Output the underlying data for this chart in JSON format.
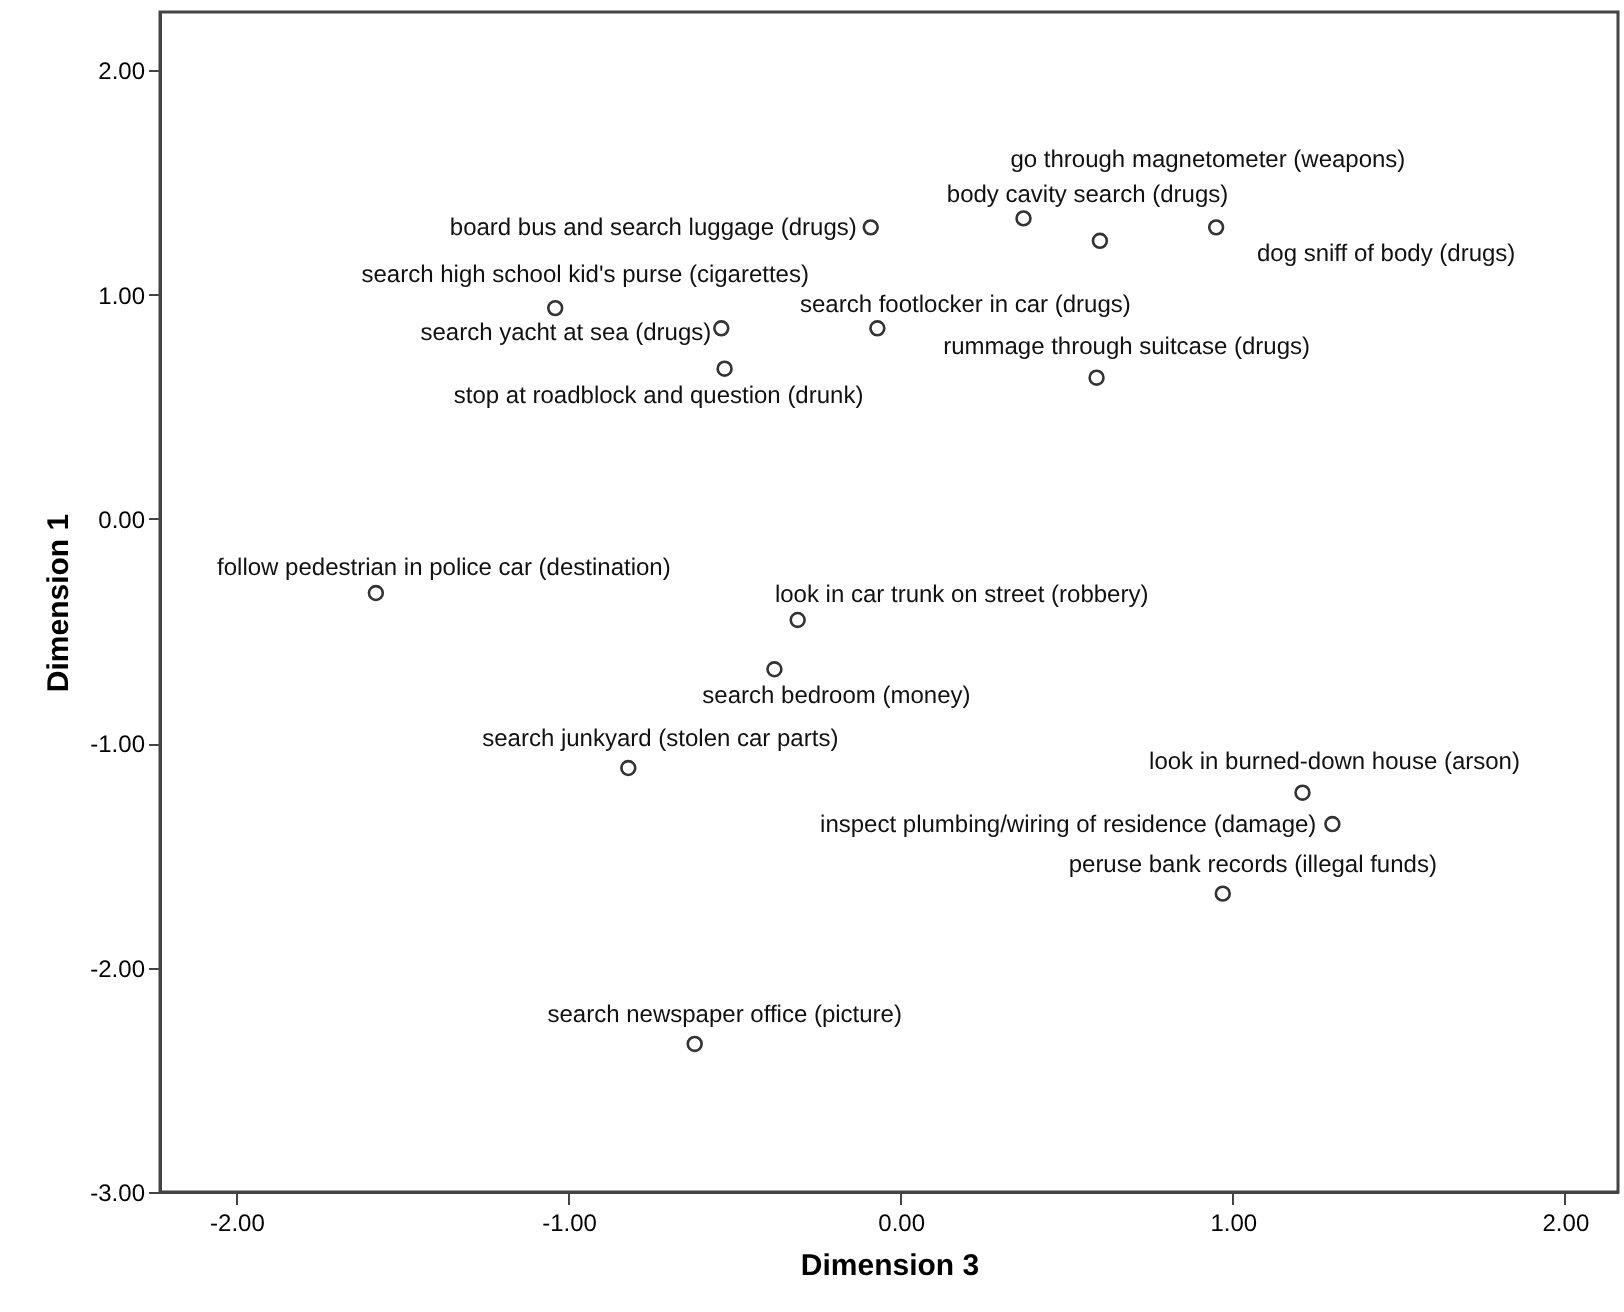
{
  "chart_data": {
    "type": "scatter",
    "xlabel": "Dimension 3",
    "ylabel": "Dimension 1",
    "x": [
      -0.09,
      0.37,
      0.6,
      0.95,
      -1.04,
      -0.54,
      -0.53,
      -0.07,
      0.59,
      -1.58,
      -0.31,
      -0.38,
      -0.82,
      1.21,
      1.3,
      0.97,
      -0.62
    ],
    "values": [
      1.3,
      1.34,
      1.24,
      1.3,
      0.94,
      0.85,
      0.67,
      0.85,
      0.63,
      -0.33,
      -0.45,
      -0.67,
      -1.11,
      -1.22,
      -1.36,
      -1.67,
      -2.34
    ],
    "color": "#333333",
    "marker": "circle",
    "grid": false,
    "xlim": [
      -2.23,
      2.16
    ],
    "ylim": [
      -3,
      2.26
    ],
    "xticks": [
      {
        "value": -2,
        "label": "-2.00"
      },
      {
        "value": -1,
        "label": "-1.00"
      },
      {
        "value": 0,
        "label": "0.00"
      },
      {
        "value": 1,
        "label": "1.00"
      },
      {
        "value": 2,
        "label": "2.00"
      }
    ],
    "yticks": [
      {
        "value": -3,
        "label": "-3.00"
      },
      {
        "value": -2,
        "label": "-2.00"
      },
      {
        "value": -1,
        "label": "-1.00"
      },
      {
        "value": 0,
        "label": "0.00"
      },
      {
        "value": 1,
        "label": "1.00"
      },
      {
        "value": 2,
        "label": "2.00"
      }
    ],
    "annotations": [
      {
        "text": "board bus and search luggage (drugs)",
        "x": -0.09,
        "y": 1.3
      },
      {
        "text": "body cavity search (drugs)",
        "x": 0.37,
        "y": 1.34
      },
      {
        "text": "go through magnetometer (weapons)",
        "x": 0.6,
        "y": 1.24
      },
      {
        "text": "dog sniff of body (drugs)",
        "x": 0.95,
        "y": 1.3
      },
      {
        "text": "search high school kid's purse (cigarettes)",
        "x": -1.04,
        "y": 0.94
      },
      {
        "text": "search yacht at sea (drugs)",
        "x": -0.54,
        "y": 0.85
      },
      {
        "text": "stop at roadblock and question (drunk)",
        "x": -0.53,
        "y": 0.67
      },
      {
        "text": "search footlocker in car (drugs)",
        "x": -0.07,
        "y": 0.85
      },
      {
        "text": "rummage through suitcase (drugs)",
        "x": 0.59,
        "y": 0.63
      },
      {
        "text": "follow pedestrian in police car (destination)",
        "x": -1.58,
        "y": -0.33
      },
      {
        "text": "look in car trunk on street (robbery)",
        "x": -0.31,
        "y": -0.45
      },
      {
        "text": "search bedroom (money)",
        "x": -0.38,
        "y": -0.67
      },
      {
        "text": "search junkyard (stolen car parts)",
        "x": -0.82,
        "y": -1.11
      },
      {
        "text": "look in burned-down house (arson)",
        "x": 1.21,
        "y": -1.22
      },
      {
        "text": "inspect plumbing/wiring of residence (damage)",
        "x": 1.3,
        "y": -1.36
      },
      {
        "text": "peruse bank records (illegal funds)",
        "x": 0.97,
        "y": -1.67
      },
      {
        "text": "search newspaper office (picture)",
        "x": -0.62,
        "y": -2.34
      }
    ]
  }
}
